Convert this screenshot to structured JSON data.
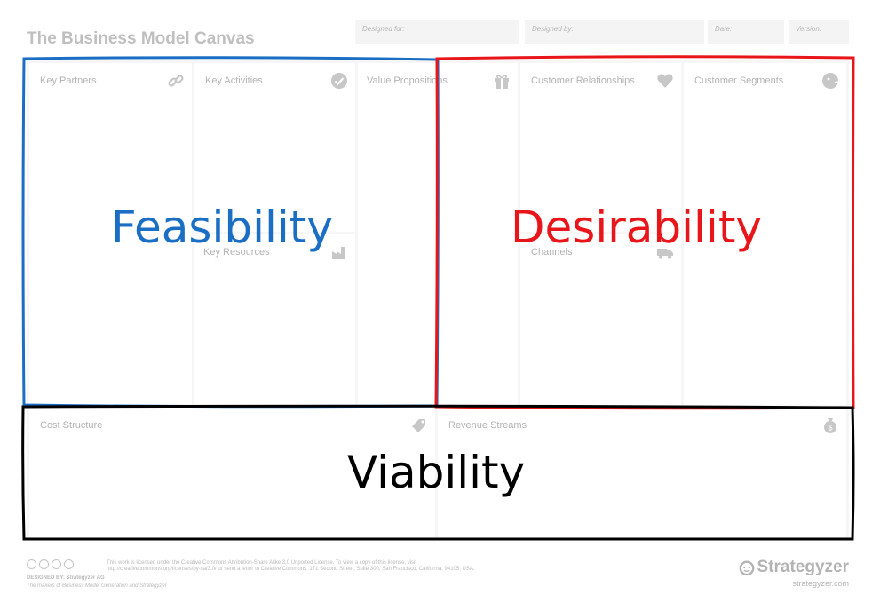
{
  "title": "The Business Model Canvas",
  "header_fields": {
    "designed_for": "Designed for:",
    "designed_by": "Designed by:",
    "date": "Date:",
    "version": "Version:"
  },
  "blocks": {
    "key_partners": "Key Partners",
    "key_activities": "Key Activities",
    "key_resources": "Key Resources",
    "value_propositions": "Value Propositions",
    "customer_relationships": "Customer Relationships",
    "channels": "Channels",
    "customer_segments": "Customer Segments",
    "cost_structure": "Cost Structure",
    "revenue_streams": "Revenue Streams"
  },
  "overlays": {
    "feasibility": "Feasibility",
    "desirability": "Desirability",
    "viability": "Viability"
  },
  "colors": {
    "feasibility": "#1a6ec4",
    "desirability": "#e8161a",
    "viability": "#000000",
    "canvas_border": "#d9d9d9"
  },
  "footer": {
    "license_text": "This work is licensed under the Creative Commons Attribution-Share Alike 3.0 Unported License. To view a copy of this license, visit",
    "license_text_2": "http://creativecommons.org/licenses/by-sa/3.0/ or send a letter to Creative Commons, 171 Second Street, Suite 300, San Francisco, California, 94105, USA.",
    "designed_by": "DESIGNED BY: Strategyzer AG",
    "tagline": "The makers of Business Model Generation and Strategyzer",
    "brand": "Strategyzer",
    "brand_url": "strategyzer.com"
  },
  "icons": [
    "link-icon",
    "check-icon",
    "gift-icon",
    "heart-icon",
    "face-icon",
    "factory-icon",
    "truck-icon",
    "tag-icon",
    "moneybag-icon"
  ]
}
